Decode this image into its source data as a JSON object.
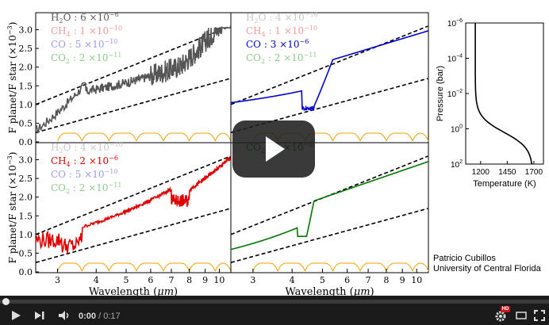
{
  "video": {
    "current_time": "0:00",
    "separator": " / ",
    "duration": "0:17",
    "played_fraction": 0.0,
    "hd_badge": "HD",
    "icons": [
      "play-icon",
      "next-icon",
      "volume-icon",
      "settings-icon",
      "miniplayer-icon",
      "fullscreen-icon"
    ]
  },
  "figure": {
    "panels": [
      {
        "id": "top-left",
        "legend": [
          {
            "mol": "H",
            "sub": "2",
            "rest": "O : 6 ×10",
            "exp": "−6",
            "color": "#5a5a5a"
          },
          {
            "mol": "CH",
            "sub": "4",
            "rest": " : 1 ×10",
            "exp": "−10",
            "color": "#f39a9a"
          },
          {
            "mol": "CO",
            "sub": "",
            "rest": " : 5 ×10",
            "exp": "−10",
            "color": "#9a9af0"
          },
          {
            "mol": "CO",
            "sub": "2",
            "rest": " : 2 ×10",
            "exp": "−11",
            "color": "#8fc98f"
          }
        ]
      },
      {
        "id": "top-right",
        "legend": [
          {
            "mol": "H",
            "sub": "2",
            "rest": "O : 4 ×10",
            "exp": "−10",
            "color": "#c8c8c8"
          },
          {
            "mol": "CH",
            "sub": "4",
            "rest": " : 1 ×10",
            "exp": "−10",
            "color": "#f39a9a"
          },
          {
            "mol": "CO",
            "sub": "",
            "rest": " : 3 ×10",
            "exp": "−6",
            "color": "#0000cc"
          },
          {
            "mol": "CO",
            "sub": "2",
            "rest": " : 2 ×10",
            "exp": "−11",
            "color": "#8fc98f"
          }
        ]
      },
      {
        "id": "bottom-left",
        "legend": [
          {
            "mol": "H",
            "sub": "2",
            "rest": "O : 4 ×10",
            "exp": "−10",
            "color": "#c8c8c8"
          },
          {
            "mol": "CH",
            "sub": "4",
            "rest": " : 2 ×10",
            "exp": "−6",
            "color": "#e00000"
          },
          {
            "mol": "CO",
            "sub": "",
            "rest": " : 5 ×10",
            "exp": "−10",
            "color": "#9a9af0"
          },
          {
            "mol": "CO",
            "sub": "2",
            "rest": " : 2 ×10",
            "exp": "−11",
            "color": "#8fc98f"
          }
        ]
      },
      {
        "id": "bottom-right",
        "legend": [
          {
            "mol": "CO",
            "sub": "2",
            "rest": " : 2 ×10",
            "exp": "−8",
            "color": "#007700"
          }
        ]
      }
    ],
    "y_axis_label": "F planet/F star  (×10",
    "y_axis_exp": "−3",
    "y_ticks_top": [
      "0.0",
      "0.5",
      "1.0",
      "1.5",
      "2.0",
      "2.5",
      "3.0"
    ],
    "y_ticks_bottom": [
      "0.0",
      "0.5",
      "1.0",
      "1.5",
      "2.0",
      "2.5",
      "3.0"
    ],
    "x_ticks": [
      "3",
      "4",
      "5",
      "6",
      "7",
      "8",
      "9",
      "10"
    ],
    "x_label": "Wavelength  (",
    "x_unit": "μm",
    "tp_profile": {
      "y_label": "Pressure (bar)",
      "x_label": "Temperature  (K)",
      "x_ticks": [
        "1200",
        "1450",
        "1700"
      ],
      "y_ticks": [
        {
          "base": "10",
          "exp": "−6"
        },
        {
          "base": "10",
          "exp": "−4"
        },
        {
          "base": "10",
          "exp": "−2"
        },
        {
          "base": "10",
          "exp": "0"
        },
        {
          "base": "10",
          "exp": "2"
        }
      ]
    },
    "credit_line1": "Patricio Cubillos",
    "credit_line2": "University of Central Florida"
  }
}
